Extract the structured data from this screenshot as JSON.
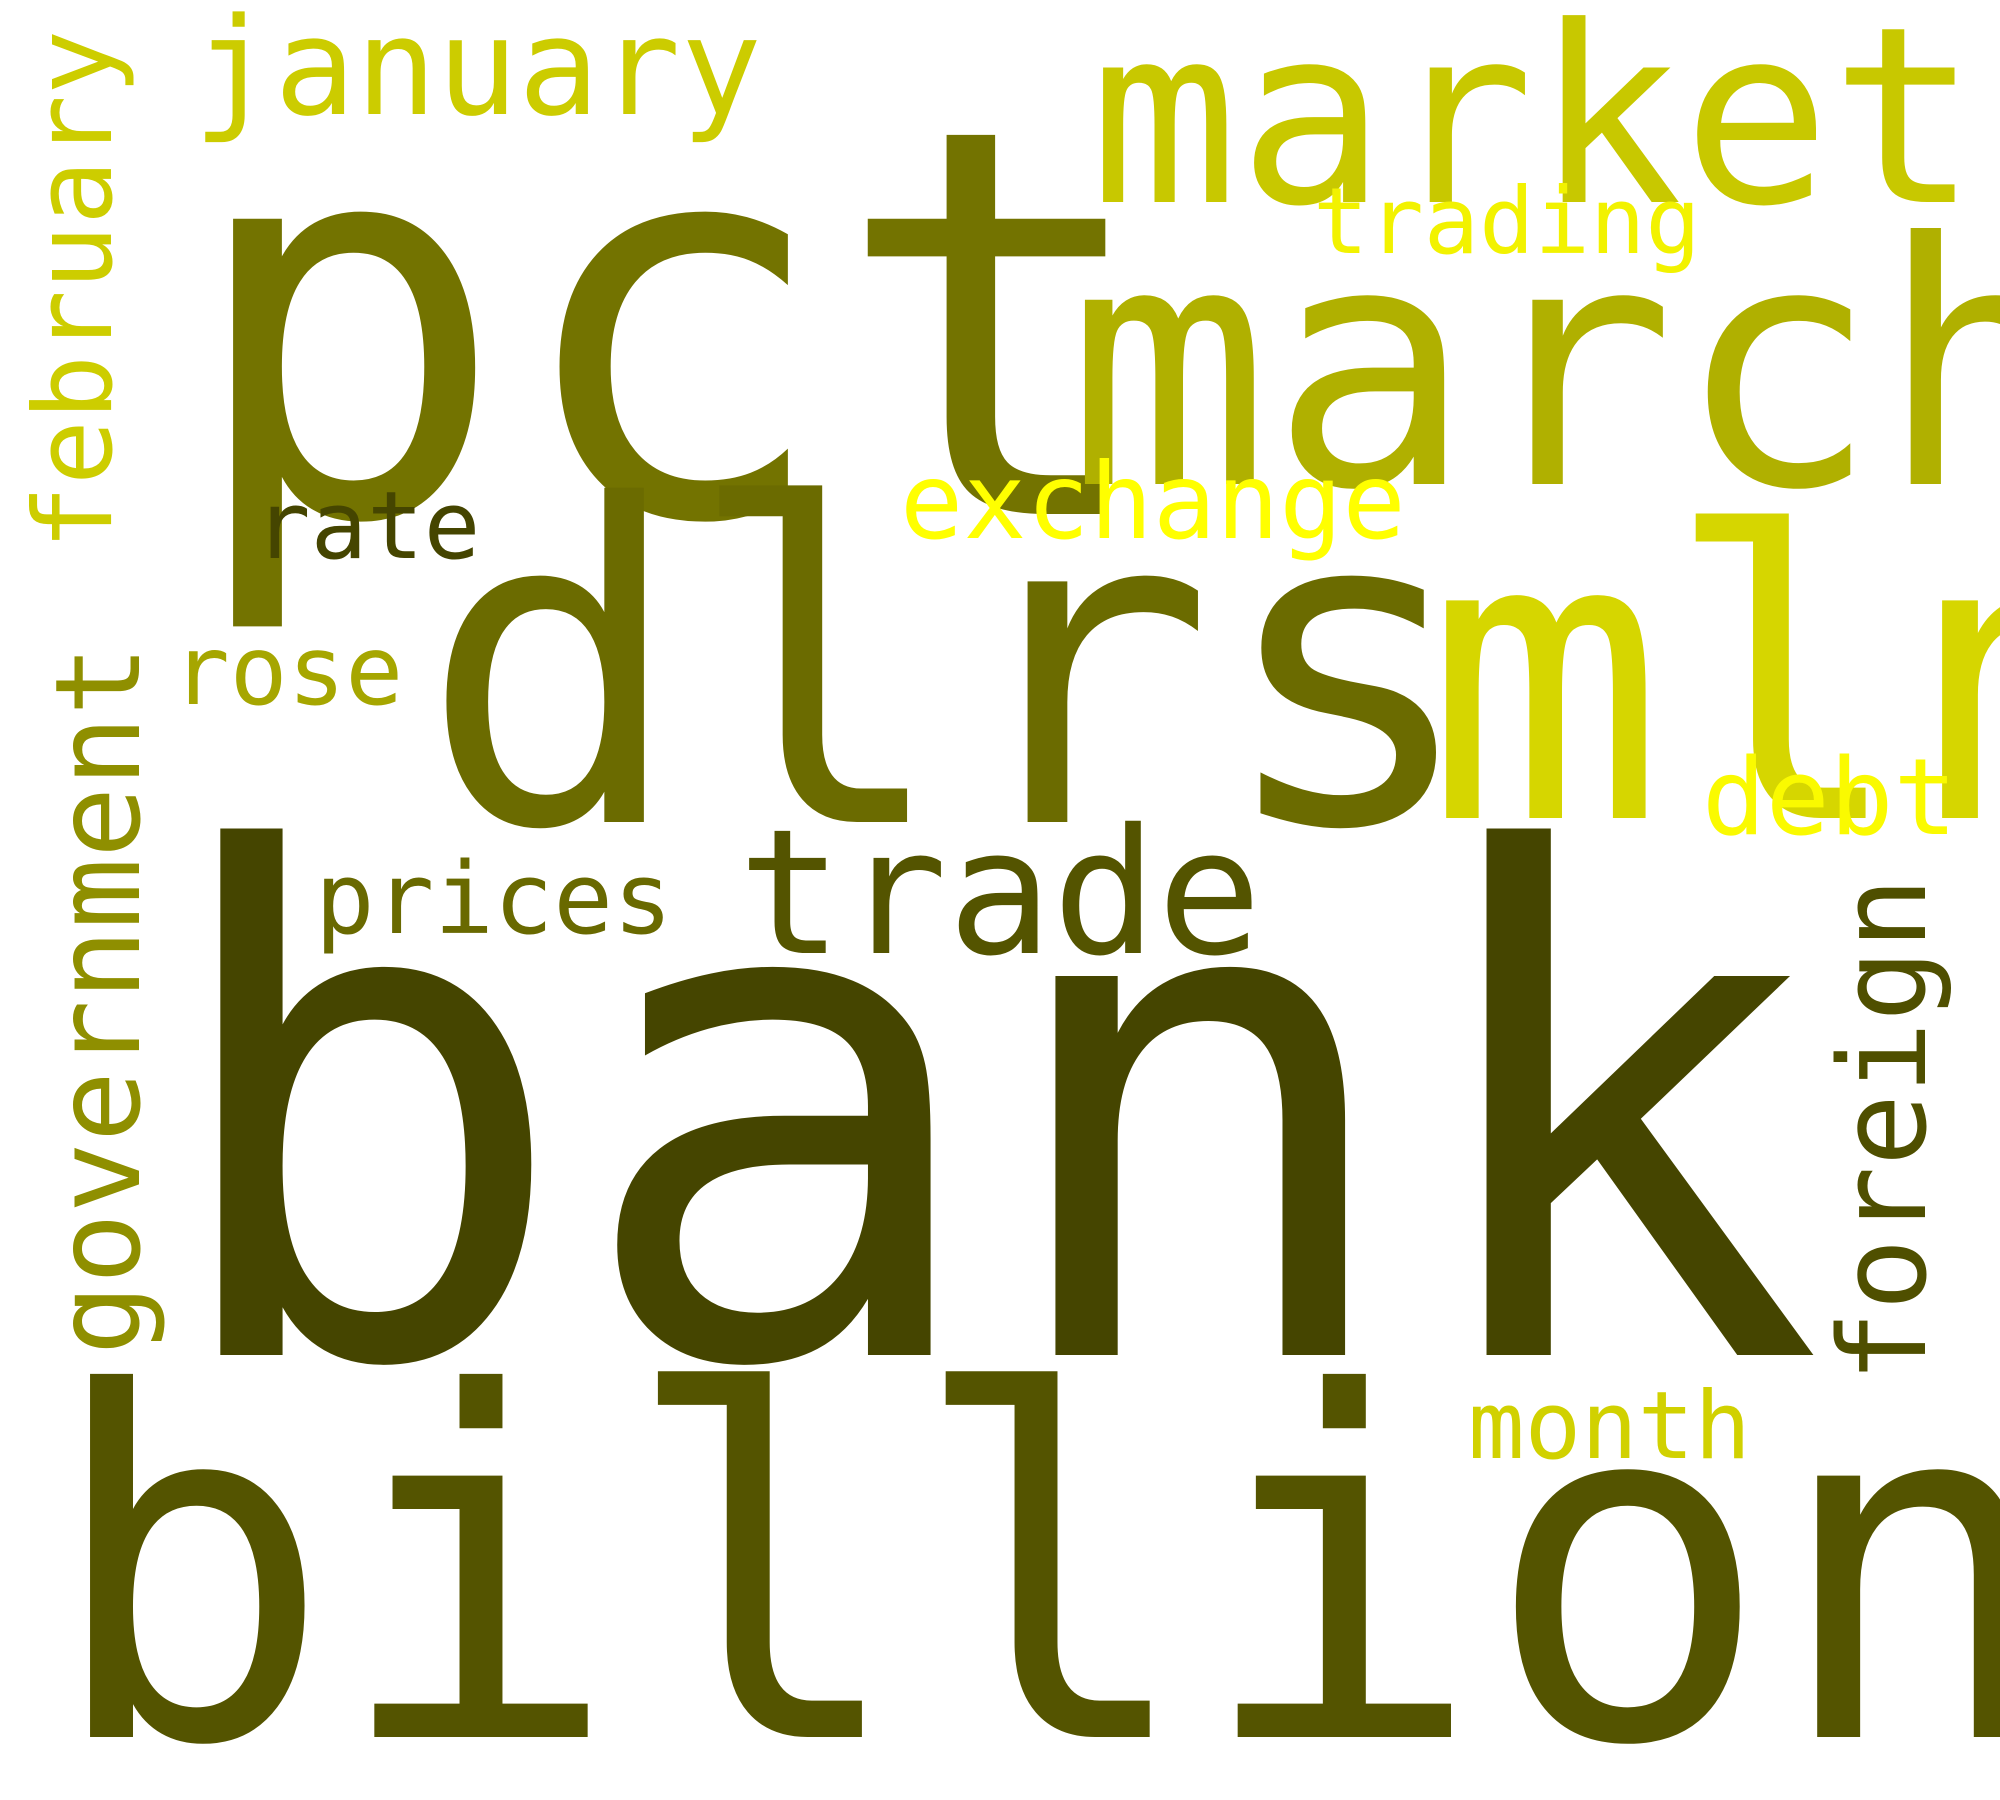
{
  "words": {
    "bank": {
      "text": "bank",
      "color": "#454500"
    },
    "billion": {
      "text": "billion",
      "color": "#545400"
    },
    "pct": {
      "text": "pct",
      "color": "#737300"
    },
    "dlrs": {
      "text": "dlrs",
      "color": "#6b6b00"
    },
    "march": {
      "text": "march",
      "color": "#b0b000"
    },
    "mln": {
      "text": "mln",
      "color": "#d6d600"
    },
    "market": {
      "text": "market",
      "color": "#c8c800"
    },
    "january": {
      "text": "january",
      "color": "#cccc00"
    },
    "february": {
      "text": "february",
      "color": "#cdcd00"
    },
    "government": {
      "text": "government",
      "color": "#8f8f00"
    },
    "foreign": {
      "text": "foreign",
      "color": "#4f4f00"
    },
    "trade": {
      "text": "trade",
      "color": "#545400"
    },
    "exchange": {
      "text": "exchange",
      "color": "#ffff00"
    },
    "trading": {
      "text": "trading",
      "color": "#f2f200"
    },
    "rate": {
      "text": "rate",
      "color": "#454500"
    },
    "rose": {
      "text": "rose",
      "color": "#a6a600"
    },
    "prices": {
      "text": "prices",
      "color": "#696900"
    },
    "debt": {
      "text": "debt",
      "color": "#fafa00"
    },
    "month": {
      "text": "month",
      "color": "#d1d100"
    }
  }
}
